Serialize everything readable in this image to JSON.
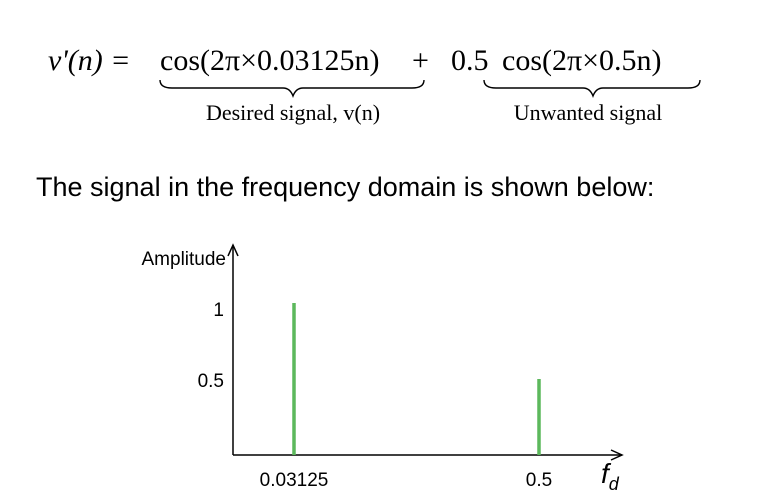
{
  "equation": {
    "lhs": "v'(n) = ",
    "term1": "cos(2π×0.03125n)",
    "plus1": " + ",
    "coef": "0.5",
    "term2": "cos(2π×0.5n)",
    "brace1_label": "Desired signal, v(n)",
    "brace2_label": "Unwanted signal"
  },
  "caption": "The signal in the frequency domain is shown below:",
  "chart_data": {
    "type": "bar",
    "ylabel": "Amplitude",
    "xlabel": "f_d",
    "categories": [
      "0.03125",
      "0.5"
    ],
    "values": [
      1,
      0.5
    ],
    "y_ticks": [
      "1",
      "0.5"
    ],
    "bar_color": "#5cb85c",
    "grid": false
  }
}
